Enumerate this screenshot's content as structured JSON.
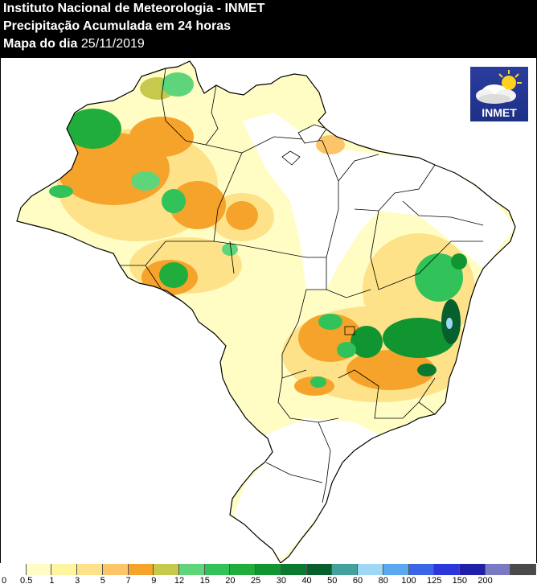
{
  "header": {
    "line1": "Instituto Nacional de Meteorologia - INMET",
    "line2": "Precipitação Acumulada em 24 horas",
    "line3_label": "Mapa do dia",
    "line3_date": "25/11/2019"
  },
  "logo": {
    "text": "INMET",
    "icon": "cloud-sun-icon"
  },
  "legend": {
    "labels": [
      "0",
      "0.5",
      "1",
      "3",
      "5",
      "7",
      "9",
      "12",
      "15",
      "20",
      "25",
      "30",
      "40",
      "50",
      "60",
      "80",
      "100",
      "125",
      "150",
      "200"
    ],
    "colors": [
      "#ffffff",
      "#fffdc4",
      "#fff5a0",
      "#fde289",
      "#fcc569",
      "#f6a32b",
      "#c6c94c",
      "#5ed57a",
      "#31c25a",
      "#21ad3c",
      "#109530",
      "#0a7a31",
      "#075f2e",
      "#45a19b",
      "#9fd8f5",
      "#5aa8f0",
      "#3a65e6",
      "#2b37d8",
      "#1f1faa",
      "#7a7ac4",
      "#4a4a4a"
    ]
  },
  "colors": {
    "map_background": "#ffffff",
    "frame": "#000000",
    "state_border": "#000000",
    "logo_background": "#22348f"
  }
}
